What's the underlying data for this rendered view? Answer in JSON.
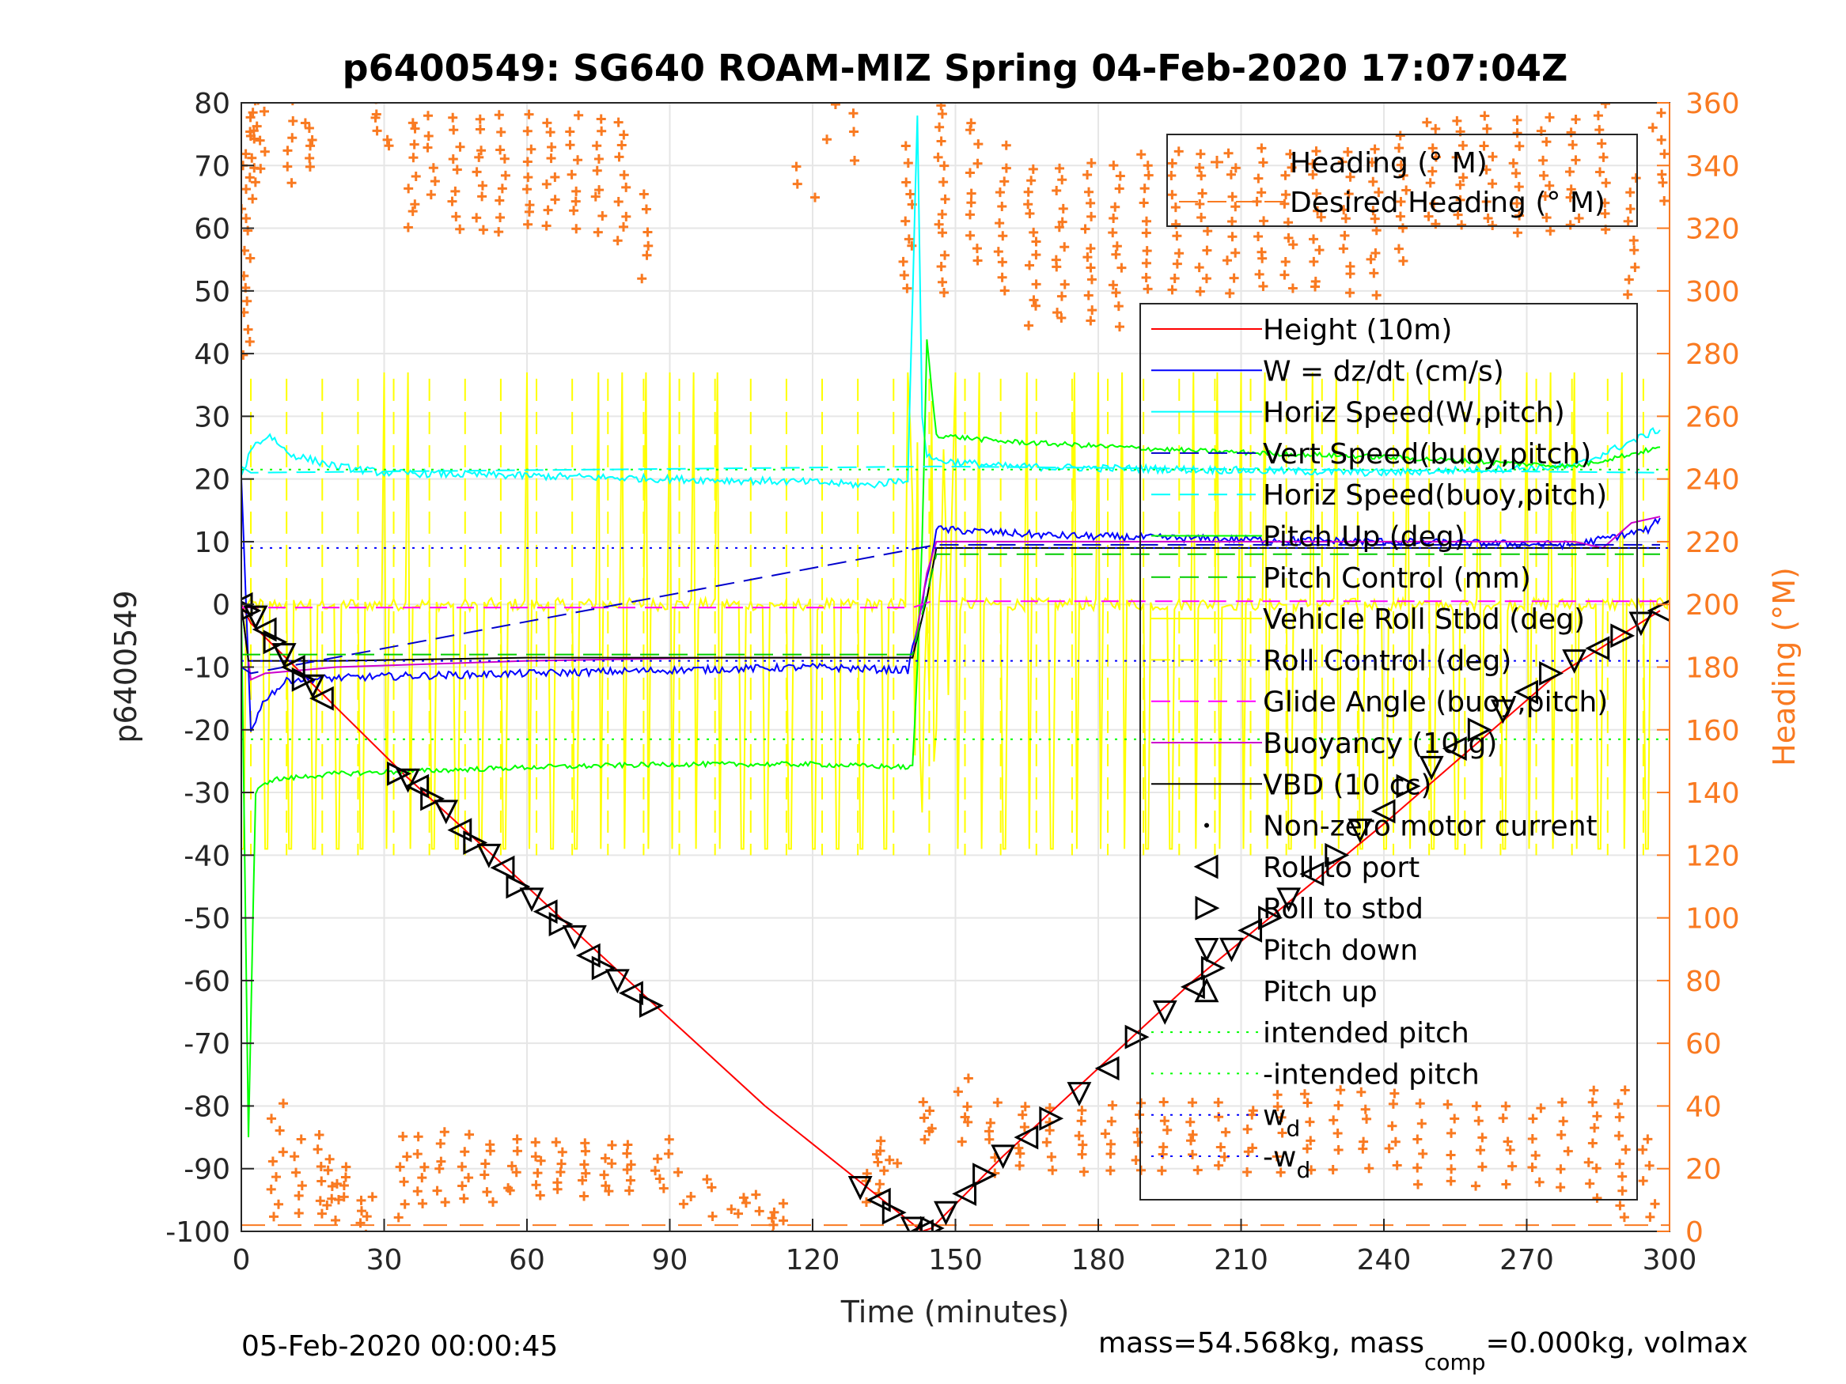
{
  "chart_data": {
    "type": "line",
    "title": "p6400549: SG640 ROAM-MIZ Spring 04-Feb-2020 17:07:04Z",
    "xlabel": "Time (minutes)",
    "ylabel": "p6400549",
    "y2label": "Heading (°M)",
    "xlim": [
      0,
      300
    ],
    "ylim": [
      -100,
      80
    ],
    "y2lim": [
      0,
      360
    ],
    "xticks": [
      0,
      30,
      60,
      90,
      120,
      150,
      180,
      210,
      240,
      270,
      300
    ],
    "yticks": [
      -100,
      -90,
      -80,
      -70,
      -60,
      -50,
      -40,
      -30,
      -20,
      -10,
      0,
      10,
      20,
      30,
      40,
      50,
      60,
      70,
      80
    ],
    "y2ticks": [
      0,
      20,
      40,
      60,
      80,
      100,
      120,
      140,
      160,
      180,
      200,
      220,
      240,
      260,
      280,
      300,
      320,
      340,
      360
    ],
    "grid": true,
    "footer_left": "05-Feb-2020 00:00:45",
    "footer_right": {
      "prefix": "mass=54.568kg, mass",
      "sub": "comp",
      "suffix": "=0.000kg, volmax"
    },
    "legend_top": [
      {
        "label": "Heading (° M)",
        "color": "#f97a21",
        "style": "plus"
      },
      {
        "label": "Desired Heading (° M)",
        "color": "#f97a21",
        "style": "dash"
      }
    ],
    "legend_main": [
      {
        "label": "Height (10m)",
        "color": "#ff0000",
        "style": "solid"
      },
      {
        "label": "W = dz/dt (cm/s)",
        "color": "#0000ff",
        "style": "solid"
      },
      {
        "label": "Horiz Speed(W,pitch)",
        "color": "#00ffff",
        "style": "solid"
      },
      {
        "label": "Vert Speed(buoy,pitch)",
        "color": "#0000cc",
        "style": "dash"
      },
      {
        "label": "Horiz Speed(buoy,pitch)",
        "color": "#00ffff",
        "style": "dash"
      },
      {
        "label": "Pitch Up (deg)",
        "color": "#00ff00",
        "style": "solid"
      },
      {
        "label": "Pitch Control (mm)",
        "color": "#00cc00",
        "style": "dash"
      },
      {
        "label": "Vehicle Roll Stbd (deg)",
        "color": "#ffff00",
        "style": "solid"
      },
      {
        "label": "Roll Control (deg)",
        "color": "#ffff00",
        "style": "dash"
      },
      {
        "label": "Glide Angle (buoy,pitch)",
        "color": "#ff00ff",
        "style": "dash"
      },
      {
        "label": "Buoyancy (10 g)",
        "color": "#cc00cc",
        "style": "solid"
      },
      {
        "label": "VBD (10 cc)",
        "color": "#000000",
        "style": "solid"
      },
      {
        "label": "Non-zero motor current",
        "color": "#000000",
        "style": "dot"
      },
      {
        "label": "Roll to port",
        "color": "#000000",
        "style": "tri-left"
      },
      {
        "label": "Roll to stbd",
        "color": "#000000",
        "style": "tri-right"
      },
      {
        "label": "Pitch down",
        "color": "#000000",
        "style": "tri-down"
      },
      {
        "label": "Pitch up",
        "color": "#000000",
        "style": "tri-up"
      },
      {
        "label": "intended pitch",
        "color": "#00ff00",
        "style": "dotted"
      },
      {
        "label": "-intended pitch",
        "color": "#00ff00",
        "style": "dotted"
      },
      {
        "label": "w",
        "sub": "d",
        "color": "#0000ff",
        "style": "dotted"
      },
      {
        "label": "-w",
        "sub": "d",
        "color": "#0000ff",
        "style": "dotted"
      }
    ],
    "series": [
      {
        "name": "Height (10m)",
        "axis": "left",
        "x": [
          0,
          2,
          18,
          34,
          60,
          87,
          110,
          143,
          145,
          160,
          200,
          240,
          275,
          298
        ],
        "y": [
          0,
          -3,
          -15,
          -27,
          -45,
          -64,
          -80,
          -100,
          -99.5,
          -88,
          -60,
          -35,
          -12,
          -1
        ]
      },
      {
        "name": "W = dz/dt (cm/s)",
        "axis": "left",
        "x": [
          0,
          2,
          5,
          10,
          30,
          60,
          90,
          120,
          140,
          143,
          146,
          170,
          200,
          240,
          280,
          296,
          298
        ],
        "y": [
          20,
          -20,
          -15,
          -12,
          -11.5,
          -11,
          -10.5,
          -10,
          -10.5,
          0,
          12,
          11,
          10.5,
          10,
          9.5,
          12,
          14
        ]
      },
      {
        "name": "Horiz Speed(W,pitch)",
        "axis": "left",
        "x": [
          0,
          2,
          6,
          10,
          20,
          30,
          60,
          90,
          120,
          132,
          140,
          142,
          143,
          144,
          146,
          160,
          200,
          240,
          280,
          298
        ],
        "y": [
          20,
          25,
          27,
          24,
          22,
          21,
          20.5,
          20,
          19.5,
          19,
          20,
          78,
          30,
          24,
          23,
          22,
          21.5,
          21,
          22,
          28
        ]
      },
      {
        "name": "Pitch Up (deg)",
        "axis": "left",
        "x": [
          0,
          1.5,
          3,
          6,
          20,
          40,
          60,
          90,
          120,
          141,
          142,
          143,
          144,
          146,
          160,
          200,
          240,
          280,
          298
        ],
        "y": [
          0,
          -85,
          -30,
          -28,
          -27,
          -26.5,
          -26,
          -25.5,
          -25.5,
          -26,
          -10,
          10,
          42,
          27,
          26,
          24.5,
          23.5,
          22,
          25
        ]
      },
      {
        "name": "Buoyancy (10 g)",
        "axis": "left",
        "x": [
          0,
          2,
          5,
          20,
          60,
          100,
          141,
          144,
          146,
          200,
          280,
          286,
          292,
          298
        ],
        "y": [
          0,
          -12,
          -11,
          -10,
          -9,
          -8.5,
          -8.5,
          5,
          10,
          10,
          10,
          9,
          13,
          14
        ]
      },
      {
        "name": "VBD (10 cc)",
        "axis": "left",
        "x": [
          0,
          1.5,
          20,
          60,
          100,
          141,
          144,
          146,
          200,
          250,
          298
        ],
        "y": [
          0,
          -9,
          -9,
          -8.5,
          -8.5,
          -8.5,
          1,
          9,
          9,
          9,
          9
        ]
      },
      {
        "name": "Glide Angle (buoy,pitch)",
        "axis": "left",
        "x": [
          0,
          141,
          145,
          298
        ],
        "y": [
          -0.5,
          -0.5,
          0.5,
          0.5
        ]
      },
      {
        "name": "intended pitch",
        "axis": "left",
        "x": [
          0,
          300
        ],
        "y": [
          21.5,
          21.5
        ]
      },
      {
        "name": "-intended pitch",
        "axis": "left",
        "x": [
          0,
          300
        ],
        "y": [
          -21.5,
          -21.5
        ]
      },
      {
        "name": "w_d",
        "axis": "left",
        "x": [
          0,
          300
        ],
        "y": [
          9,
          9
        ]
      },
      {
        "name": "-w_d",
        "axis": "left",
        "x": [
          0,
          300
        ],
        "y": [
          -9,
          -9
        ]
      },
      {
        "name": "Desired Heading (° M)",
        "axis": "right",
        "x": [
          0,
          300
        ],
        "y": [
          2,
          2
        ]
      }
    ],
    "markers": {
      "x": [
        0,
        1.5,
        3,
        5,
        7,
        9,
        11,
        13,
        15,
        17,
        33,
        35,
        37,
        40,
        43,
        46,
        49,
        52,
        55,
        58,
        61,
        64,
        67,
        70,
        73,
        76,
        79,
        82,
        86,
        130,
        134,
        137,
        141,
        143,
        145,
        148,
        152,
        156,
        160,
        165,
        170,
        176,
        182,
        188,
        194,
        200,
        204,
        208,
        212,
        216,
        220,
        225,
        230,
        235,
        240,
        245,
        250,
        255,
        260,
        265,
        270,
        275,
        280,
        285,
        290,
        294,
        298
      ],
      "y": [
        0,
        -1,
        -2,
        -4,
        -6,
        -8,
        -10,
        -12,
        -13,
        -15,
        -27,
        -28,
        -29,
        -31,
        -33,
        -36,
        -38,
        -40,
        -42,
        -45,
        -47,
        -49,
        -51,
        -53,
        -56,
        -58,
        -60,
        -62,
        -64,
        -93,
        -95,
        -97,
        -99.5,
        -100,
        -99.5,
        -97,
        -94,
        -91,
        -88,
        -85,
        -82,
        -78,
        -74,
        -69,
        -65,
        -61,
        -58,
        -55,
        -52,
        -50,
        -47,
        -43,
        -40,
        -36,
        -33,
        -29,
        -26,
        -23,
        -20,
        -17,
        -14,
        -11,
        -9,
        -7,
        -5,
        -3,
        -1
      ]
    },
    "heading_clusters": [
      {
        "x0": 0,
        "x1": 2,
        "low": 280,
        "high": 365
      },
      {
        "x0": 2,
        "x1": 3,
        "low": 330,
        "high": 360
      },
      {
        "x0": 3,
        "x1": 5,
        "low": 340,
        "high": 360
      },
      {
        "x0": 6,
        "x1": 9,
        "low": 0,
        "high": 40
      },
      {
        "x0": 9,
        "x1": 11,
        "low": 335,
        "high": 360
      },
      {
        "x0": 11,
        "x1": 13,
        "low": 5,
        "high": 30
      },
      {
        "x0": 13,
        "x1": 15,
        "low": 340,
        "high": 355
      },
      {
        "x0": 15,
        "x1": 17,
        "low": 5,
        "high": 30
      },
      {
        "x0": 18,
        "x1": 20,
        "low": 5,
        "high": 22
      },
      {
        "x0": 20,
        "x1": 24,
        "low": 10,
        "high": 20
      },
      {
        "x0": 24,
        "x1": 28,
        "low": 0,
        "high": 12
      },
      {
        "x0": 28,
        "x1": 33,
        "low": 345,
        "high": 360
      },
      {
        "x0": 33,
        "x1": 35,
        "low": 5,
        "high": 30
      },
      {
        "x0": 35,
        "x1": 37,
        "low": 320,
        "high": 355
      },
      {
        "x0": 37,
        "x1": 39,
        "low": 10,
        "high": 30
      },
      {
        "x0": 39,
        "x1": 41,
        "low": 330,
        "high": 355
      },
      {
        "x0": 41,
        "x1": 43,
        "low": 10,
        "high": 32
      },
      {
        "x0": 44,
        "x1": 46,
        "low": 320,
        "high": 355
      },
      {
        "x0": 46,
        "x1": 48,
        "low": 10,
        "high": 30
      },
      {
        "x0": 49,
        "x1": 51,
        "low": 320,
        "high": 355
      },
      {
        "x0": 51,
        "x1": 53,
        "low": 10,
        "high": 28
      },
      {
        "x0": 54,
        "x1": 56,
        "low": 320,
        "high": 355
      },
      {
        "x0": 56,
        "x1": 58,
        "low": 12,
        "high": 28
      },
      {
        "x0": 59,
        "x1": 61,
        "low": 320,
        "high": 355
      },
      {
        "x0": 61,
        "x1": 63,
        "low": 12,
        "high": 28
      },
      {
        "x0": 64,
        "x1": 66,
        "low": 320,
        "high": 355
      },
      {
        "x0": 66,
        "x1": 68,
        "low": 12,
        "high": 28
      },
      {
        "x0": 69,
        "x1": 71,
        "low": 320,
        "high": 355
      },
      {
        "x0": 71,
        "x1": 73,
        "low": 12,
        "high": 28
      },
      {
        "x0": 74,
        "x1": 76,
        "low": 320,
        "high": 355
      },
      {
        "x0": 76,
        "x1": 78,
        "low": 12,
        "high": 28
      },
      {
        "x0": 79,
        "x1": 81,
        "low": 315,
        "high": 355
      },
      {
        "x0": 81,
        "x1": 83,
        "low": 12,
        "high": 28
      },
      {
        "x0": 84,
        "x1": 86,
        "low": 305,
        "high": 330
      },
      {
        "x0": 86,
        "x1": 90,
        "low": 15,
        "high": 28
      },
      {
        "x0": 90,
        "x1": 100,
        "low": 5,
        "high": 20
      },
      {
        "x0": 100,
        "x1": 110,
        "low": 5,
        "high": 12
      },
      {
        "x0": 110,
        "x1": 114,
        "low": 0,
        "high": 8
      },
      {
        "x0": 114,
        "x1": 130,
        "low": 330,
        "high": 360
      },
      {
        "x0": 131,
        "x1": 134,
        "low": 10,
        "high": 25
      },
      {
        "x0": 134,
        "x1": 138,
        "low": 15,
        "high": 30
      },
      {
        "x0": 139,
        "x1": 141,
        "low": 300,
        "high": 345
      },
      {
        "x0": 143,
        "x1": 146,
        "low": 30,
        "high": 40
      },
      {
        "x0": 146,
        "x1": 148,
        "low": 300,
        "high": 360
      },
      {
        "x0": 150,
        "x1": 153,
        "low": 30,
        "high": 48
      },
      {
        "x0": 153,
        "x1": 155,
        "low": 310,
        "high": 355
      },
      {
        "x0": 157,
        "x1": 159,
        "low": 20,
        "high": 40
      },
      {
        "x0": 159,
        "x1": 161,
        "low": 300,
        "high": 345
      },
      {
        "x0": 163,
        "x1": 165,
        "low": 20,
        "high": 40
      },
      {
        "x0": 165,
        "x1": 167,
        "low": 290,
        "high": 340
      },
      {
        "x0": 169,
        "x1": 171,
        "low": 20,
        "high": 40
      },
      {
        "x0": 171,
        "x1": 173,
        "low": 290,
        "high": 340
      },
      {
        "x0": 175,
        "x1": 177,
        "low": 20,
        "high": 40
      },
      {
        "x0": 177,
        "x1": 179,
        "low": 290,
        "high": 340
      },
      {
        "x0": 181,
        "x1": 183,
        "low": 20,
        "high": 40
      },
      {
        "x0": 183,
        "x1": 185,
        "low": 290,
        "high": 340
      },
      {
        "x0": 187,
        "x1": 189,
        "low": 20,
        "high": 40
      },
      {
        "x0": 189,
        "x1": 191,
        "low": 300,
        "high": 345
      },
      {
        "x0": 193,
        "x1": 195,
        "low": 20,
        "high": 40
      },
      {
        "x0": 195,
        "x1": 197,
        "low": 300,
        "high": 345
      },
      {
        "x0": 199,
        "x1": 201,
        "low": 20,
        "high": 40
      },
      {
        "x0": 201,
        "x1": 203,
        "low": 300,
        "high": 345
      },
      {
        "x0": 205,
        "x1": 207,
        "low": 20,
        "high": 40
      },
      {
        "x0": 207,
        "x1": 209,
        "low": 300,
        "high": 345
      },
      {
        "x0": 211,
        "x1": 213,
        "low": 20,
        "high": 40
      },
      {
        "x0": 213,
        "x1": 215,
        "low": 300,
        "high": 345
      },
      {
        "x0": 217,
        "x1": 219,
        "low": 20,
        "high": 45
      },
      {
        "x0": 219,
        "x1": 221,
        "low": 300,
        "high": 345
      },
      {
        "x0": 223,
        "x1": 225,
        "low": 20,
        "high": 45
      },
      {
        "x0": 225,
        "x1": 227,
        "low": 300,
        "high": 345
      },
      {
        "x0": 229,
        "x1": 231,
        "low": 20,
        "high": 45
      },
      {
        "x0": 231,
        "x1": 233,
        "low": 300,
        "high": 345
      },
      {
        "x0": 235,
        "x1": 237,
        "low": 20,
        "high": 45
      },
      {
        "x0": 237,
        "x1": 239,
        "low": 300,
        "high": 345
      },
      {
        "x0": 241,
        "x1": 243,
        "low": 20,
        "high": 45
      },
      {
        "x0": 243,
        "x1": 245,
        "low": 310,
        "high": 350
      },
      {
        "x0": 247,
        "x1": 249,
        "low": 15,
        "high": 40
      },
      {
        "x0": 249,
        "x1": 251,
        "low": 320,
        "high": 355
      },
      {
        "x0": 253,
        "x1": 255,
        "low": 15,
        "high": 40
      },
      {
        "x0": 255,
        "x1": 257,
        "low": 320,
        "high": 355
      },
      {
        "x0": 259,
        "x1": 261,
        "low": 15,
        "high": 40
      },
      {
        "x0": 261,
        "x1": 263,
        "low": 320,
        "high": 355
      },
      {
        "x0": 265,
        "x1": 267,
        "low": 15,
        "high": 40
      },
      {
        "x0": 267,
        "x1": 269,
        "low": 320,
        "high": 355
      },
      {
        "x0": 271,
        "x1": 273,
        "low": 15,
        "high": 40
      },
      {
        "x0": 273,
        "x1": 275,
        "low": 320,
        "high": 355
      },
      {
        "x0": 277,
        "x1": 279,
        "low": 15,
        "high": 40
      },
      {
        "x0": 279,
        "x1": 281,
        "low": 320,
        "high": 355
      },
      {
        "x0": 283,
        "x1": 285,
        "low": 10,
        "high": 45
      },
      {
        "x0": 285,
        "x1": 287,
        "low": 320,
        "high": 360
      },
      {
        "x0": 289,
        "x1": 291,
        "low": 5,
        "high": 45
      },
      {
        "x0": 291,
        "x1": 293,
        "low": 300,
        "high": 335
      },
      {
        "x0": 294,
        "x1": 298,
        "low": 5,
        "high": 30
      },
      {
        "x0": 296,
        "x1": 299,
        "low": 330,
        "high": 360
      }
    ]
  }
}
